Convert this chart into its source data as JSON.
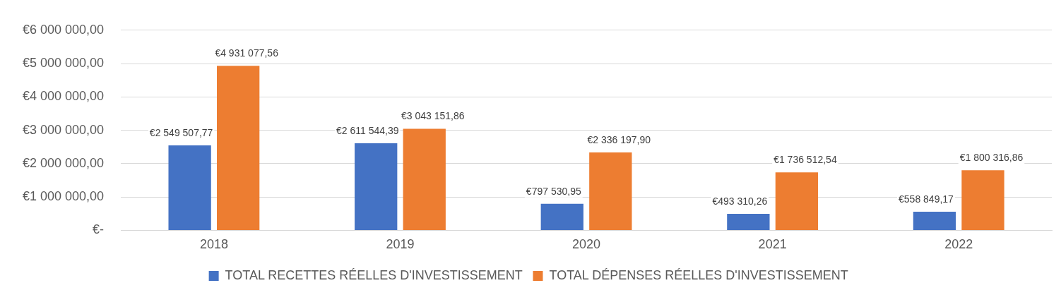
{
  "chart_data": {
    "type": "bar",
    "categories": [
      "2018",
      "2019",
      "2020",
      "2021",
      "2022"
    ],
    "series": [
      {
        "name": "TOTAL RECETTES RÉELLES D'INVESTISSEMENT",
        "color": "#4472c4",
        "values": [
          2549507.77,
          2611544.39,
          797530.95,
          493310.26,
          558849.17
        ],
        "value_labels": [
          "€2 549 507,77",
          "€2 611 544,39",
          "€797 530,95",
          "€493 310,26",
          "€558 849,17"
        ]
      },
      {
        "name": "TOTAL DÉPENSES RÉELLES D'INVESTISSEMENT",
        "color": "#ed7d31",
        "values": [
          4931077.56,
          3043151.86,
          2336197.9,
          1736512.54,
          1800316.86
        ],
        "value_labels": [
          "€4 931 077,56",
          "€3 043 151,86",
          "€2 336 197,90",
          "€1 736 512,54",
          "€1 800 316,86"
        ]
      }
    ],
    "ylim": [
      0,
      6000000
    ],
    "yticks": [
      {
        "value": 0,
        "label": "€-"
      },
      {
        "value": 1000000,
        "label": "€1 000 000,00"
      },
      {
        "value": 2000000,
        "label": "€2 000 000,00"
      },
      {
        "value": 3000000,
        "label": "€3 000 000,00"
      },
      {
        "value": 4000000,
        "label": "€4 000 000,00"
      },
      {
        "value": 5000000,
        "label": "€5 000 000,00"
      },
      {
        "value": 6000000,
        "label": "€6 000 000,00"
      }
    ],
    "grid": "y",
    "legend": "bottom"
  }
}
